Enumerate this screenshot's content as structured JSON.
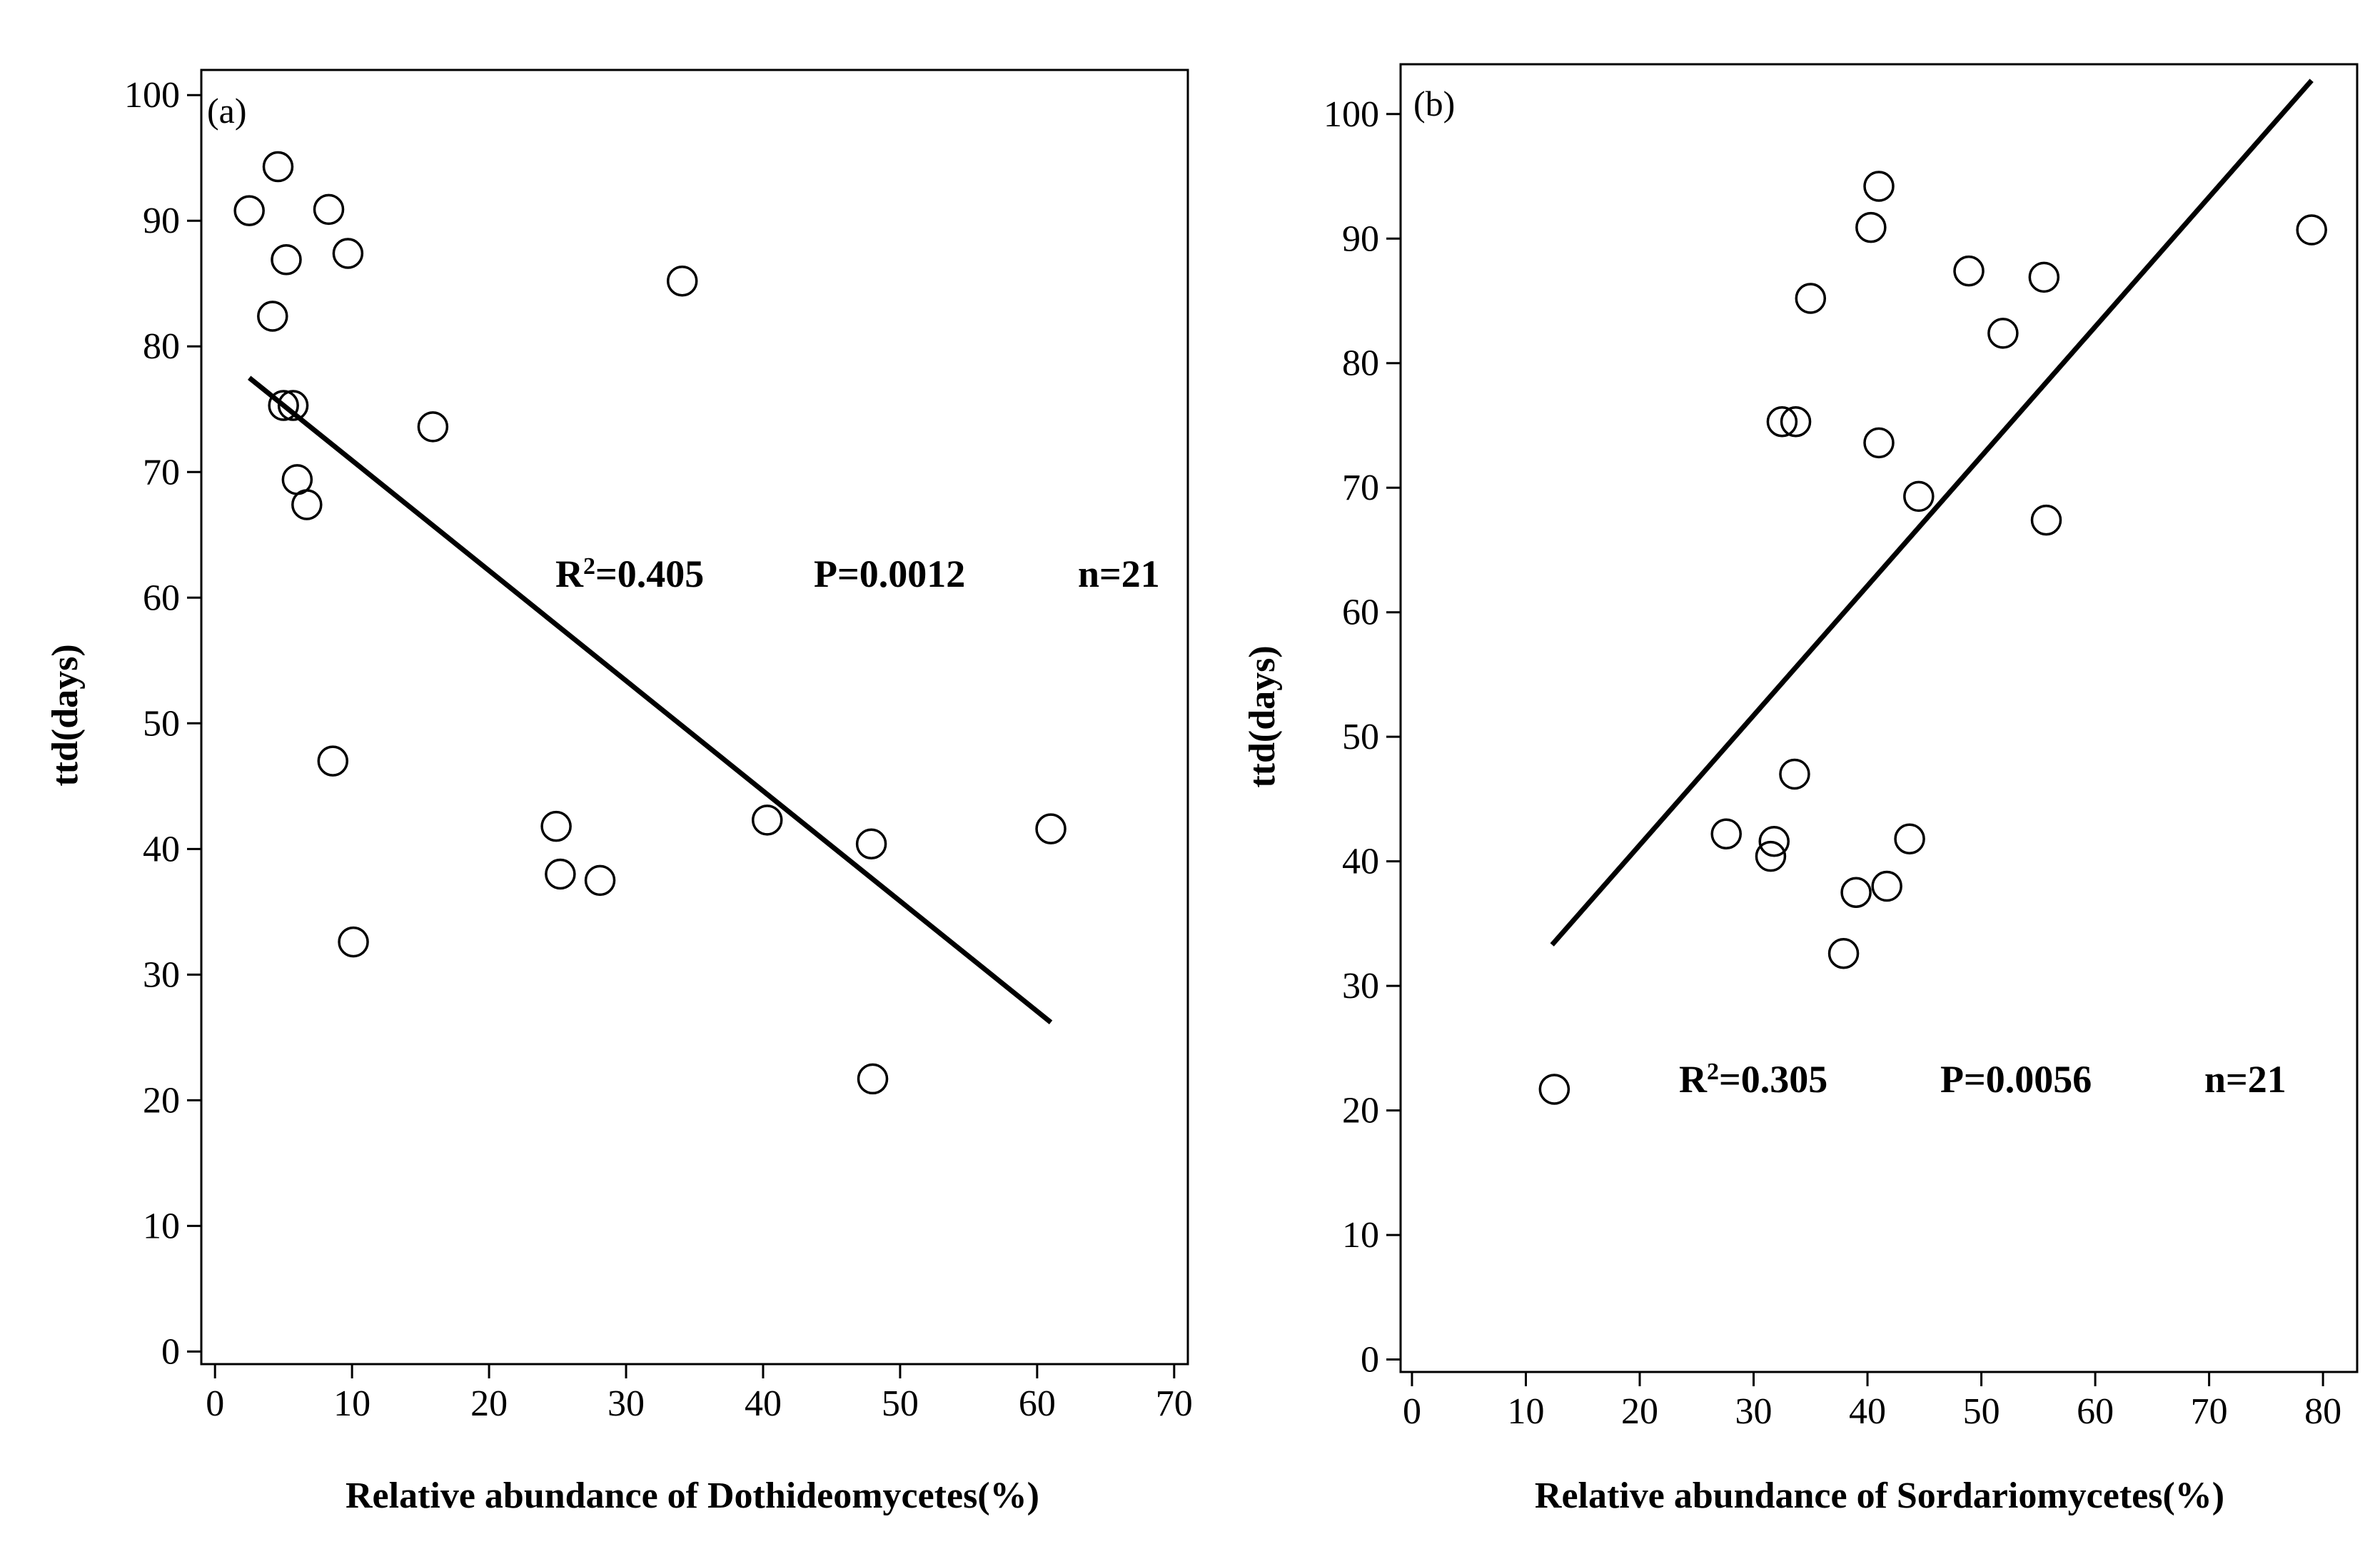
{
  "figure": {
    "background": "#ffffff",
    "ink": "#000000"
  },
  "chart_data": [
    {
      "type": "scatter",
      "panel_label": "(a)",
      "xlabel": "Relative abundance of Dothideomycetes(%)",
      "ylabel": "ttd(days)",
      "xlim": [
        -1,
        71
      ],
      "ylim": [
        -1,
        102
      ],
      "xticks": [
        0,
        10,
        20,
        30,
        40,
        50,
        60,
        70
      ],
      "yticks": [
        0,
        10,
        20,
        30,
        40,
        50,
        60,
        70,
        80,
        90,
        100
      ],
      "x": [
        2.5,
        4.6,
        8.3,
        9.7,
        5.2,
        4.2,
        34.1,
        5.0,
        5.7,
        15.9,
        6.0,
        6.7,
        8.6,
        24.9,
        40.3,
        61.0,
        47.9,
        25.2,
        28.1,
        10.1,
        48.0
      ],
      "y": [
        90.8,
        94.3,
        90.9,
        87.4,
        86.9,
        82.4,
        85.2,
        75.3,
        75.3,
        73.6,
        69.4,
        67.4,
        47.0,
        41.8,
        42.3,
        41.6,
        40.4,
        38.0,
        37.5,
        32.6,
        21.7
      ],
      "trendline": {
        "x": [
          2.5,
          61.0
        ],
        "y": [
          77.5,
          26.2
        ]
      },
      "annotations": {
        "r2_prefix": "R",
        "r2_sup": "2",
        "r2_value": "=0.405",
        "p": "P=0.0012",
        "n": "n=21"
      }
    },
    {
      "type": "scatter",
      "panel_label": "(b)",
      "xlabel": "Relative abundance of Sordariomycetes(%)",
      "ylabel": "ttd(days)",
      "xlim": [
        -1,
        83
      ],
      "ylim": [
        -1,
        104
      ],
      "xticks": [
        0,
        10,
        20,
        30,
        40,
        50,
        60,
        70,
        80
      ],
      "yticks": [
        0,
        10,
        20,
        30,
        40,
        50,
        60,
        70,
        80,
        90,
        100
      ],
      "x": [
        41.0,
        40.3,
        79.0,
        48.9,
        55.5,
        35.0,
        51.9,
        32.5,
        33.7,
        41.0,
        44.5,
        55.7,
        33.6,
        27.6,
        31.8,
        31.5,
        43.7,
        41.7,
        39.0,
        37.9,
        12.5
      ],
      "y": [
        94.2,
        90.9,
        90.7,
        87.4,
        86.9,
        85.2,
        82.4,
        75.3,
        75.3,
        73.6,
        69.3,
        67.4,
        47.0,
        42.2,
        41.6,
        40.4,
        41.8,
        38.0,
        37.5,
        32.6,
        21.7
      ],
      "trendline": {
        "x": [
          12.3,
          79.0
        ],
        "y": [
          33.3,
          102.7
        ]
      },
      "annotations": {
        "r2_prefix": "R",
        "r2_sup": "2",
        "r2_value": "=0.305",
        "p": "P=0.0056",
        "n": "n=21"
      }
    }
  ]
}
